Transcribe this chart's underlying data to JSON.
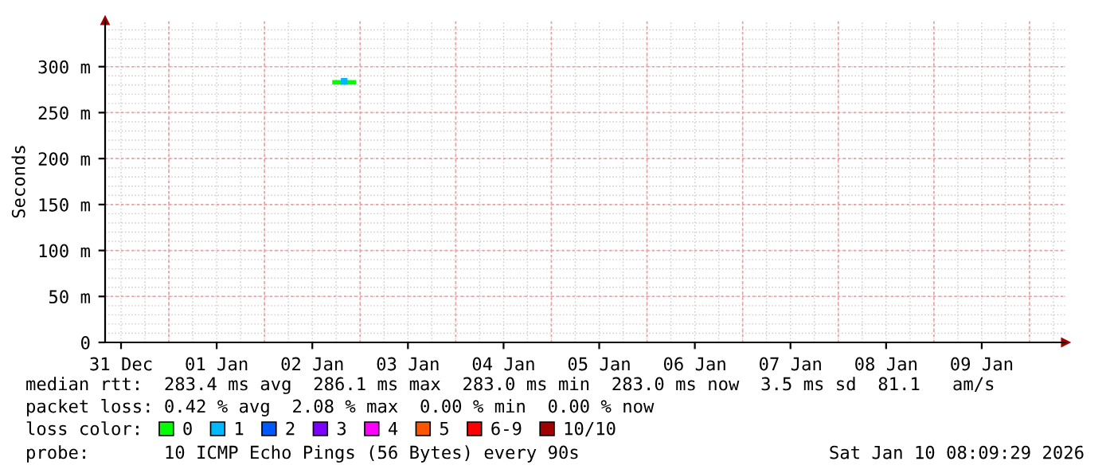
{
  "chart_data": {
    "type": "line",
    "ylabel": "Seconds",
    "series": [
      {
        "name": "0",
        "color": "#00ff00",
        "x": [
          "2026-01-02T05:00",
          "2026-01-02T08:00",
          "2026-01-02T11:00"
        ],
        "values": [
          283,
          283,
          283
        ]
      },
      {
        "name": "1",
        "type": "scatter",
        "marker": "square",
        "color": "#00b8ff",
        "x": [
          "2026-01-02T08:00"
        ],
        "values": [
          284
        ]
      },
      {
        "name": "2",
        "color": "#0059ff",
        "values": [
          null,
          null,
          null,
          null,
          null
        ]
      },
      {
        "name": "3",
        "color": "#7e00ff",
        "values": [
          null,
          null,
          null,
          null,
          null
        ]
      },
      {
        "name": "4",
        "color": "#ff00ff",
        "values": [
          null,
          null,
          null,
          null,
          null
        ]
      },
      {
        "name": "5",
        "color": "#ff5500",
        "values": [
          null,
          null,
          null,
          null,
          null
        ]
      },
      {
        "name": "6-9",
        "color": "#ff0000",
        "values": [
          null,
          null,
          null,
          null,
          null
        ]
      },
      {
        "name": "10/10",
        "color": "#a10000",
        "values": [
          null,
          null,
          null,
          null,
          null
        ]
      }
    ],
    "xlim": [
      "2025-12-30T20:00",
      "2026-01-09T21:00"
    ],
    "xticks": [
      {
        "value": "2025-12-31",
        "label": "31 Dec"
      },
      {
        "value": "2026-01-01",
        "label": "01 Jan"
      },
      {
        "value": "2026-01-02",
        "label": "02 Jan"
      },
      {
        "value": "2026-01-03",
        "label": "03 Jan"
      },
      {
        "value": "2026-01-04",
        "label": "04 Jan"
      },
      {
        "value": "2026-01-05",
        "label": "05 Jan"
      },
      {
        "value": "2026-01-06",
        "label": "06 Jan"
      },
      {
        "value": "2026-01-07",
        "label": "07 Jan"
      },
      {
        "value": "2026-01-08",
        "label": "08 Jan"
      },
      {
        "value": "2026-01-09",
        "label": "09 Jan"
      }
    ],
    "ylim": [
      0,
      350
    ],
    "yticks": [
      0,
      {
        "value": 50,
        "label": "50 m"
      },
      {
        "value": 100,
        "label": "100 m"
      },
      {
        "value": 150,
        "label": "150 m"
      },
      {
        "value": 200,
        "label": "200 m"
      },
      {
        "value": 250,
        "label": "250 m"
      },
      {
        "value": 300,
        "label": "300 m"
      }
    ],
    "grid": true,
    "legend": "bottom",
    "legend_title": "loss color:",
    "annotations": [
      "median rtt:  283.4 ms avg  286.1 ms max  283.0 ms min  283.0 ms now  3.5 ms sd  81.1   am/s",
      "packet loss: 0.42 % avg  2.08 % max  0.00 % min  0.00 % now",
      "probe:       10 ICMP Echo Pings (56 Bytes) every 90s",
      "Sat Jan 10 08:09:29 2026"
    ]
  }
}
